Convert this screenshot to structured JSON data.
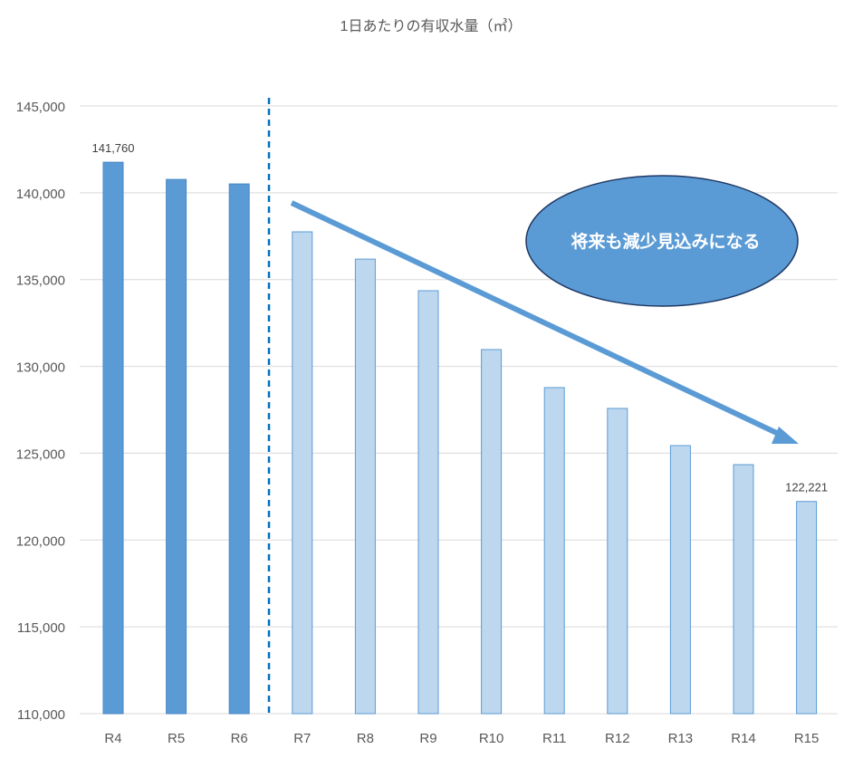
{
  "chart_data": {
    "type": "bar",
    "title": "1日あたりの有収水量（㎥）",
    "xlabel": "",
    "ylabel": "",
    "ylim": [
      110000,
      145000
    ],
    "yticks": [
      110000,
      115000,
      120000,
      125000,
      130000,
      135000,
      140000,
      145000
    ],
    "ytick_labels": [
      "110,000",
      "115,000",
      "120,000",
      "125,000",
      "130,000",
      "135,000",
      "140,000",
      "145,000"
    ],
    "grid": true,
    "categories": [
      "R4",
      "R5",
      "R6",
      "R7",
      "R8",
      "R9",
      "R10",
      "R11",
      "R12",
      "R13",
      "R14",
      "R15"
    ],
    "values": [
      141760,
      140770,
      140510,
      137750,
      136180,
      134360,
      130970,
      128780,
      127580,
      125440,
      124340,
      122221
    ],
    "data_labels": {
      "R4": "141,760",
      "R15": "122,221"
    },
    "actual_categories": [
      "R4",
      "R5",
      "R6"
    ],
    "forecast_categories": [
      "R7",
      "R8",
      "R9",
      "R10",
      "R11",
      "R12",
      "R13",
      "R14",
      "R15"
    ],
    "colors": {
      "actual": "#5B9BD5",
      "forecast": "#BDD7EE",
      "divider": "#0070C0",
      "arrow": "#5B9BD5",
      "callout": "#5B9BD5"
    },
    "annotation": "将来も減少見込みになる"
  }
}
